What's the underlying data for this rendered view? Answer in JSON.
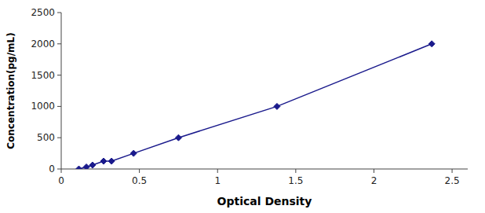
{
  "chart_data": {
    "type": "line",
    "x": [
      0.113,
      0.161,
      0.2,
      0.271,
      0.322,
      0.463,
      0.75,
      1.38,
      2.37
    ],
    "values": [
      0,
      31.25,
      62.5,
      125,
      125,
      250,
      500,
      1000,
      2000
    ],
    "color": "#1a1a8c",
    "marker": "diamond",
    "line_style": "solid",
    "xlabel": "Optical Density",
    "ylabel": "Concentration(pg/mL)",
    "xlim": [
      0.0,
      2.6
    ],
    "ylim": [
      0,
      2500
    ],
    "xticks": [
      0.0,
      0.5,
      1.0,
      1.5,
      2.0,
      2.5
    ],
    "yticks": [
      0,
      500,
      1000,
      1500,
      2000,
      2500
    ],
    "grid": false
  }
}
